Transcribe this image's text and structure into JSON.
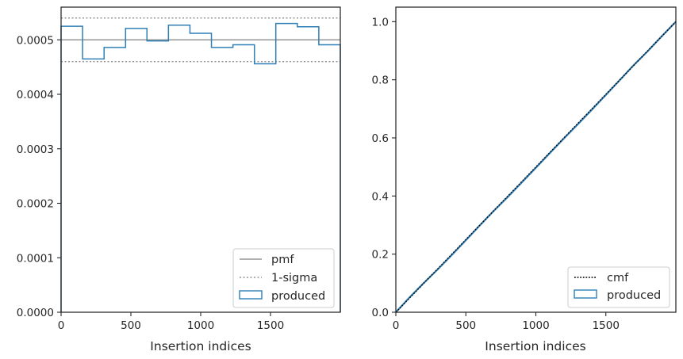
{
  "colors": {
    "produced": "#2f7fb6",
    "pmf": "#808080",
    "sigma": "#808080",
    "cmf": "#000000",
    "axes": "#262626"
  },
  "chart_data": [
    {
      "type": "line",
      "subtype": "step-histogram",
      "xlabel": "Insertion indices",
      "ylabel": "",
      "xlim": [
        0,
        2000
      ],
      "ylim": [
        0,
        0.00056
      ],
      "xticks": [
        0,
        500,
        1000,
        1500
      ],
      "xtick_labels": [
        "0",
        "500",
        "1000",
        "1500"
      ],
      "yticks": [
        0,
        0.0001,
        0.0002,
        0.0003,
        0.0004,
        0.0005
      ],
      "ytick_labels": [
        "0.0000",
        "0.0001",
        "0.0002",
        "0.0003",
        "0.0004",
        "0.0005"
      ],
      "grid": false,
      "legend_position": "lower-right",
      "legend": [
        "pmf",
        "1-sigma",
        "produced"
      ],
      "pmf": 0.0005,
      "sigma_upper": 0.00054,
      "sigma_lower": 0.00046,
      "bin_edges": [
        0,
        154,
        308,
        462,
        615,
        769,
        923,
        1077,
        1231,
        1385,
        1538,
        1692,
        1846,
        2000
      ],
      "produced": [
        0.000525,
        0.000465,
        0.000486,
        0.000521,
        0.000498,
        0.000527,
        0.000512,
        0.000486,
        0.000491,
        0.000456,
        0.00053,
        0.000524,
        0.000491
      ]
    },
    {
      "type": "line",
      "subtype": "cumulative",
      "xlabel": "Insertion indices",
      "ylabel": "",
      "xlim": [
        0,
        2000
      ],
      "ylim": [
        0,
        1.05
      ],
      "xticks": [
        0,
        500,
        1000,
        1500
      ],
      "xtick_labels": [
        "0",
        "500",
        "1000",
        "1500"
      ],
      "yticks": [
        0,
        0.2,
        0.4,
        0.6,
        0.8,
        1.0
      ],
      "ytick_labels": [
        "0.0",
        "0.2",
        "0.4",
        "0.6",
        "0.8",
        "1.0"
      ],
      "grid": false,
      "legend_position": "lower-right",
      "legend": [
        "cmf",
        "produced"
      ],
      "cmf_x": [
        0,
        2000
      ],
      "cmf_y": [
        0,
        1
      ],
      "produced_x": [
        0,
        100,
        200,
        300,
        400,
        500,
        600,
        700,
        800,
        900,
        1000,
        1100,
        1200,
        1300,
        1400,
        1500,
        1600,
        1700,
        1800,
        1900,
        2000
      ],
      "produced_y": [
        0,
        0.052,
        0.101,
        0.148,
        0.197,
        0.248,
        0.299,
        0.349,
        0.397,
        0.447,
        0.497,
        0.548,
        0.598,
        0.647,
        0.697,
        0.748,
        0.799,
        0.851,
        0.899,
        0.95,
        1.0
      ]
    }
  ]
}
